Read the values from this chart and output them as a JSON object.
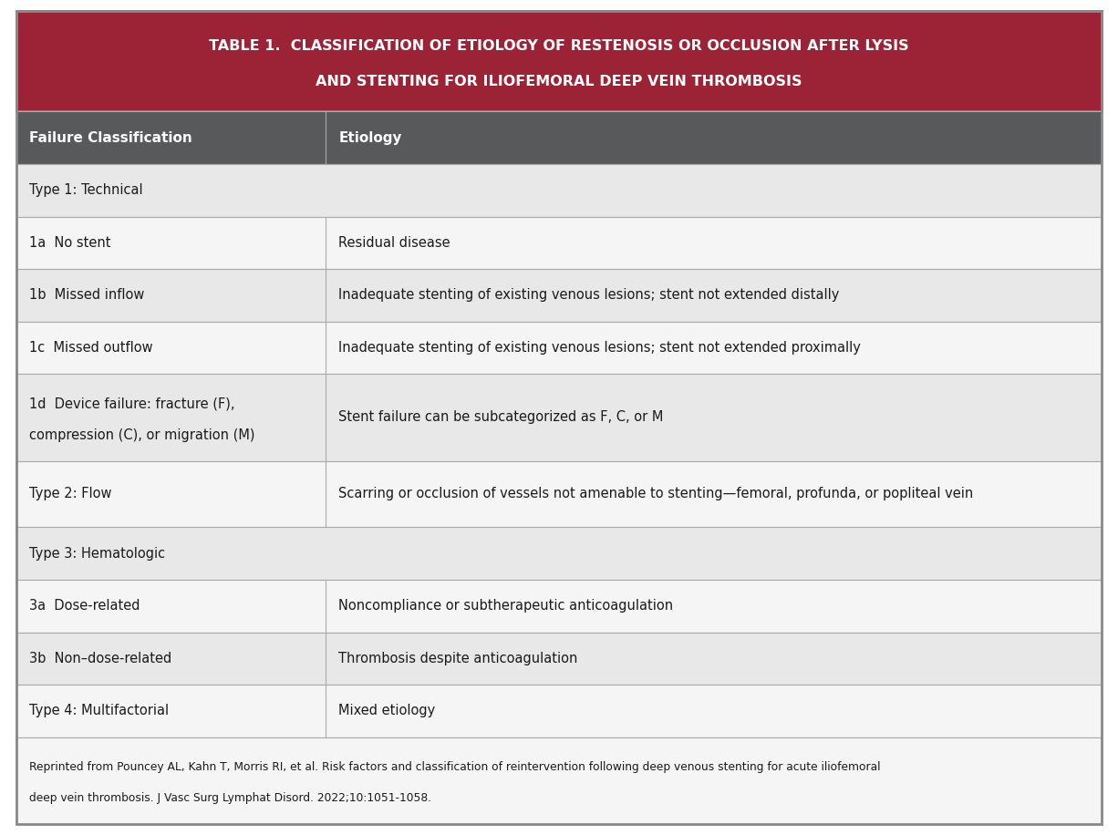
{
  "title_line1": "TABLE 1.  CLASSIFICATION OF ETIOLOGY OF RESTENOSIS OR OCCLUSION AFTER LYSIS",
  "title_line2": "AND STENTING FOR ILIOFEMORAL DEEP VEIN THROMBOSIS",
  "title_bg": "#9B2335",
  "title_color": "#FFFFFF",
  "header_bg": "#58595B",
  "header_color": "#FFFFFF",
  "col1_header": "Failure Classification",
  "col2_header": "Etiology",
  "col_split": 0.285,
  "border_color": "#AAAAAA",
  "text_color": "#1A1A1A",
  "rows": [
    {
      "col1": "Type 1: Technical",
      "col2": "",
      "span": true,
      "bg": "#E8E8E8"
    },
    {
      "col1": "1a  No stent",
      "col2": "Residual disease",
      "span": false,
      "bg": "#F5F5F5"
    },
    {
      "col1": "1b  Missed inflow",
      "col2": "Inadequate stenting of existing venous lesions; stent not extended distally",
      "span": false,
      "bg": "#E8E8E8"
    },
    {
      "col1": "1c  Missed outflow",
      "col2": "Inadequate stenting of existing venous lesions; stent not extended proximally",
      "span": false,
      "bg": "#F5F5F5"
    },
    {
      "col1": "1d  Device failure: fracture (F),\ncompression (C), or migration (M)",
      "col2": "Stent failure can be subcategorized as F, C, or M",
      "span": false,
      "bg": "#E8E8E8"
    },
    {
      "col1": "Type 2: Flow",
      "col2": "Scarring or occlusion of vessels not amenable to stenting—femoral, profunda, or popliteal vein",
      "span": false,
      "bg": "#F5F5F5"
    },
    {
      "col1": "Type 3: Hematologic",
      "col2": "",
      "span": true,
      "bg": "#E8E8E8"
    },
    {
      "col1": "3a  Dose-related",
      "col2": "Noncompliance or subtherapeutic anticoagulation",
      "span": false,
      "bg": "#F5F5F5"
    },
    {
      "col1": "3b  Non–dose-related",
      "col2": "Thrombosis despite anticoagulation",
      "span": false,
      "bg": "#E8E8E8"
    },
    {
      "col1": "Type 4: Multifactorial",
      "col2": "Mixed etiology",
      "span": false,
      "bg": "#F5F5F5"
    }
  ],
  "footnote_line1": "Reprinted from Pouncey AL, Kahn T, Morris RI, et al. Risk factors and classification of reintervention following deep venous stenting for acute iliofemoral",
  "footnote_line2": "deep vein thrombosis. J Vasc Surg Lymphat Disord. 2022;10:1051-1058.",
  "footnote_bg": "#F5F5F5",
  "outer_border_color": "#888888",
  "fig_width": 12.26,
  "fig_height": 9.16,
  "dpi": 100
}
